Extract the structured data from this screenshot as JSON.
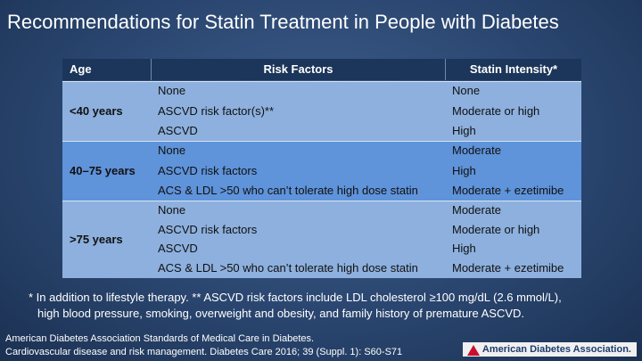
{
  "title": "Recommendations for Statin Treatment in People with Diabetes",
  "table": {
    "header": [
      "Age",
      "Risk Factors",
      "Statin Intensity*"
    ],
    "groups": [
      {
        "age": "<40 years",
        "rows": [
          [
            "None",
            "None"
          ],
          [
            "ASCVD risk factor(s)**",
            "Moderate or high"
          ],
          [
            "ASCVD",
            "High"
          ]
        ]
      },
      {
        "age": "40–75 years",
        "rows": [
          [
            "None",
            "Moderate"
          ],
          [
            "ASCVD risk factors",
            "High"
          ],
          [
            "ACS & LDL >50 who can’t tolerate high dose statin",
            "Moderate + ezetimibe"
          ]
        ]
      },
      {
        "age": ">75 years",
        "rows": [
          [
            "None",
            "Moderate"
          ],
          [
            "ASCVD risk factors",
            "Moderate or high"
          ],
          [
            "ASCVD",
            "High"
          ],
          [
            "ACS & LDL >50 who can’t tolerate high dose statin",
            "Moderate + ezetimibe"
          ]
        ]
      }
    ]
  },
  "footnote": [
    "* In addition to lifestyle therapy. ** ASCVD risk factors include LDL cholesterol ≥100 mg/dL (2.6 mmol/L),",
    "high blood pressure, smoking, overweight and obesity, and family history of premature ASCVD."
  ],
  "citation": [
    "American Diabetes Association Standards of Medical Care in Diabetes.",
    "Cardiovascular disease and risk management. Diabetes Care 2016; 39 (Suppl. 1): S60-S71"
  ],
  "logo": "American Diabetes Association."
}
